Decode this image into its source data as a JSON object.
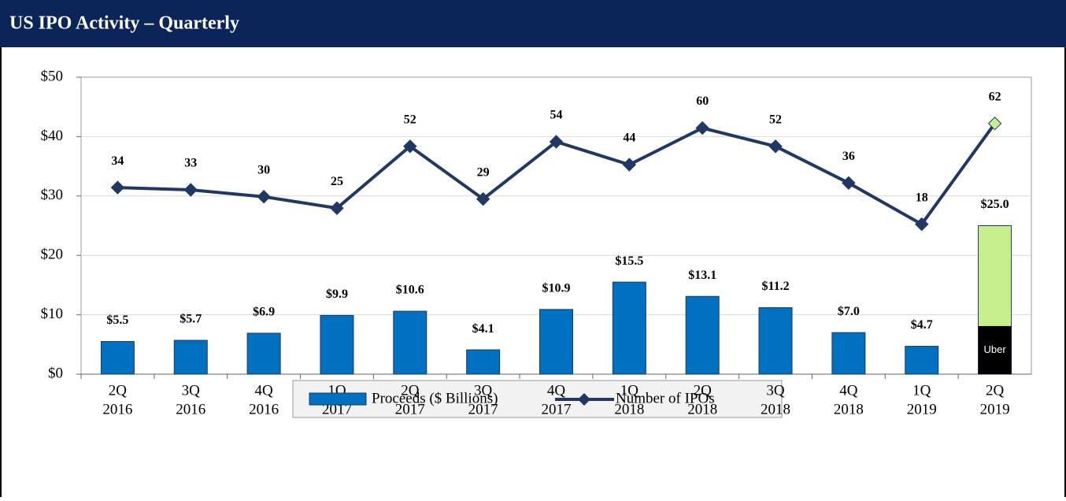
{
  "chart_data": {
    "type": "bar",
    "title": "US IPO Activity – Quarterly",
    "categories": [
      [
        "2Q",
        "2016"
      ],
      [
        "3Q",
        "2016"
      ],
      [
        "4Q",
        "2016"
      ],
      [
        "1Q",
        "2017"
      ],
      [
        "2Q",
        "2017"
      ],
      [
        "3Q",
        "2017"
      ],
      [
        "4Q",
        "2017"
      ],
      [
        "1Q",
        "2018"
      ],
      [
        "2Q",
        "2018"
      ],
      [
        "3Q",
        "2018"
      ],
      [
        "4Q",
        "2018"
      ],
      [
        "1Q",
        "2019"
      ],
      [
        "2Q",
        "2019"
      ]
    ],
    "series": [
      {
        "name": "Proceeds ($ Billions)",
        "type": "bar",
        "color": "#0070c0",
        "colors": [
          "#0070c0",
          "#0070c0",
          "#0070c0",
          "#0070c0",
          "#0070c0",
          "#0070c0",
          "#0070c0",
          "#0070c0",
          "#0070c0",
          "#0070c0",
          "#0070c0",
          "#0070c0",
          "#c6f08c"
        ],
        "values": [
          5.5,
          5.7,
          6.9,
          9.9,
          10.6,
          4.1,
          10.9,
          15.5,
          13.1,
          11.2,
          7.0,
          4.7,
          25.0
        ],
        "value_labels": [
          "$5.5",
          "$5.7",
          "$6.9",
          "$9.9",
          "$10.6",
          "$4.1",
          "$10.9",
          "$15.5",
          "$13.1",
          "$11.2",
          "$7.0",
          "$4.7",
          "$25.0"
        ]
      },
      {
        "name": "Number of IPOs",
        "type": "line",
        "axis": "y2",
        "color": "#1f3864",
        "marker_colors": [
          "#1f3864",
          "#1f3864",
          "#1f3864",
          "#1f3864",
          "#1f3864",
          "#1f3864",
          "#1f3864",
          "#1f3864",
          "#1f3864",
          "#1f3864",
          "#1f3864",
          "#1f3864",
          "#c6f08c"
        ],
        "values": [
          34,
          33,
          30,
          25,
          52,
          29,
          54,
          44,
          60,
          52,
          36,
          18,
          62
        ]
      }
    ],
    "overlay": {
      "label": "Uber",
      "index": 12,
      "value": 8.1,
      "color": "#000000"
    },
    "ylim": [
      0,
      50
    ],
    "yticks": [
      {
        "value": 0,
        "label": "$0"
      },
      {
        "value": 10,
        "label": "$10"
      },
      {
        "value": 20,
        "label": "$20"
      },
      {
        "value": 30,
        "label": "$30"
      },
      {
        "value": 40,
        "label": "$40"
      },
      {
        "value": 50,
        "label": "$50"
      }
    ],
    "y2lim": [
      -47.5,
      82.2
    ],
    "grid": true
  }
}
